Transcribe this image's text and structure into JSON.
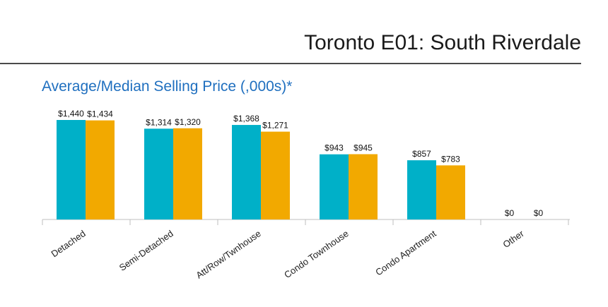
{
  "header": {
    "title": "Toronto E01: South Riverdale"
  },
  "chart_data": {
    "type": "bar",
    "title": "Average/Median Selling Price (,000s)*",
    "categories": [
      "Detached",
      "Semi-Detached",
      "Att/Row/Twnhouse",
      "Condo Townhouse",
      "Condo Apartment",
      "Other"
    ],
    "series": [
      {
        "values": [
          1440,
          1314,
          1368,
          943,
          857,
          0
        ],
        "labels": [
          "$1,440",
          "$1,314",
          "$1,368",
          "$943",
          "$857",
          "$0"
        ]
      },
      {
        "values": [
          1434,
          1320,
          1271,
          945,
          783,
          0
        ],
        "labels": [
          "$1,434",
          "$1,320",
          "$1,271",
          "$945",
          "$783",
          "$0"
        ]
      }
    ],
    "ylim": [
      0,
      1440
    ],
    "grid": false,
    "legend": "none"
  },
  "colors": {
    "series_1": "#00b0c8",
    "series_2": "#f2a900",
    "axis": "#bfbfbf",
    "title": "#1f6fbf"
  }
}
